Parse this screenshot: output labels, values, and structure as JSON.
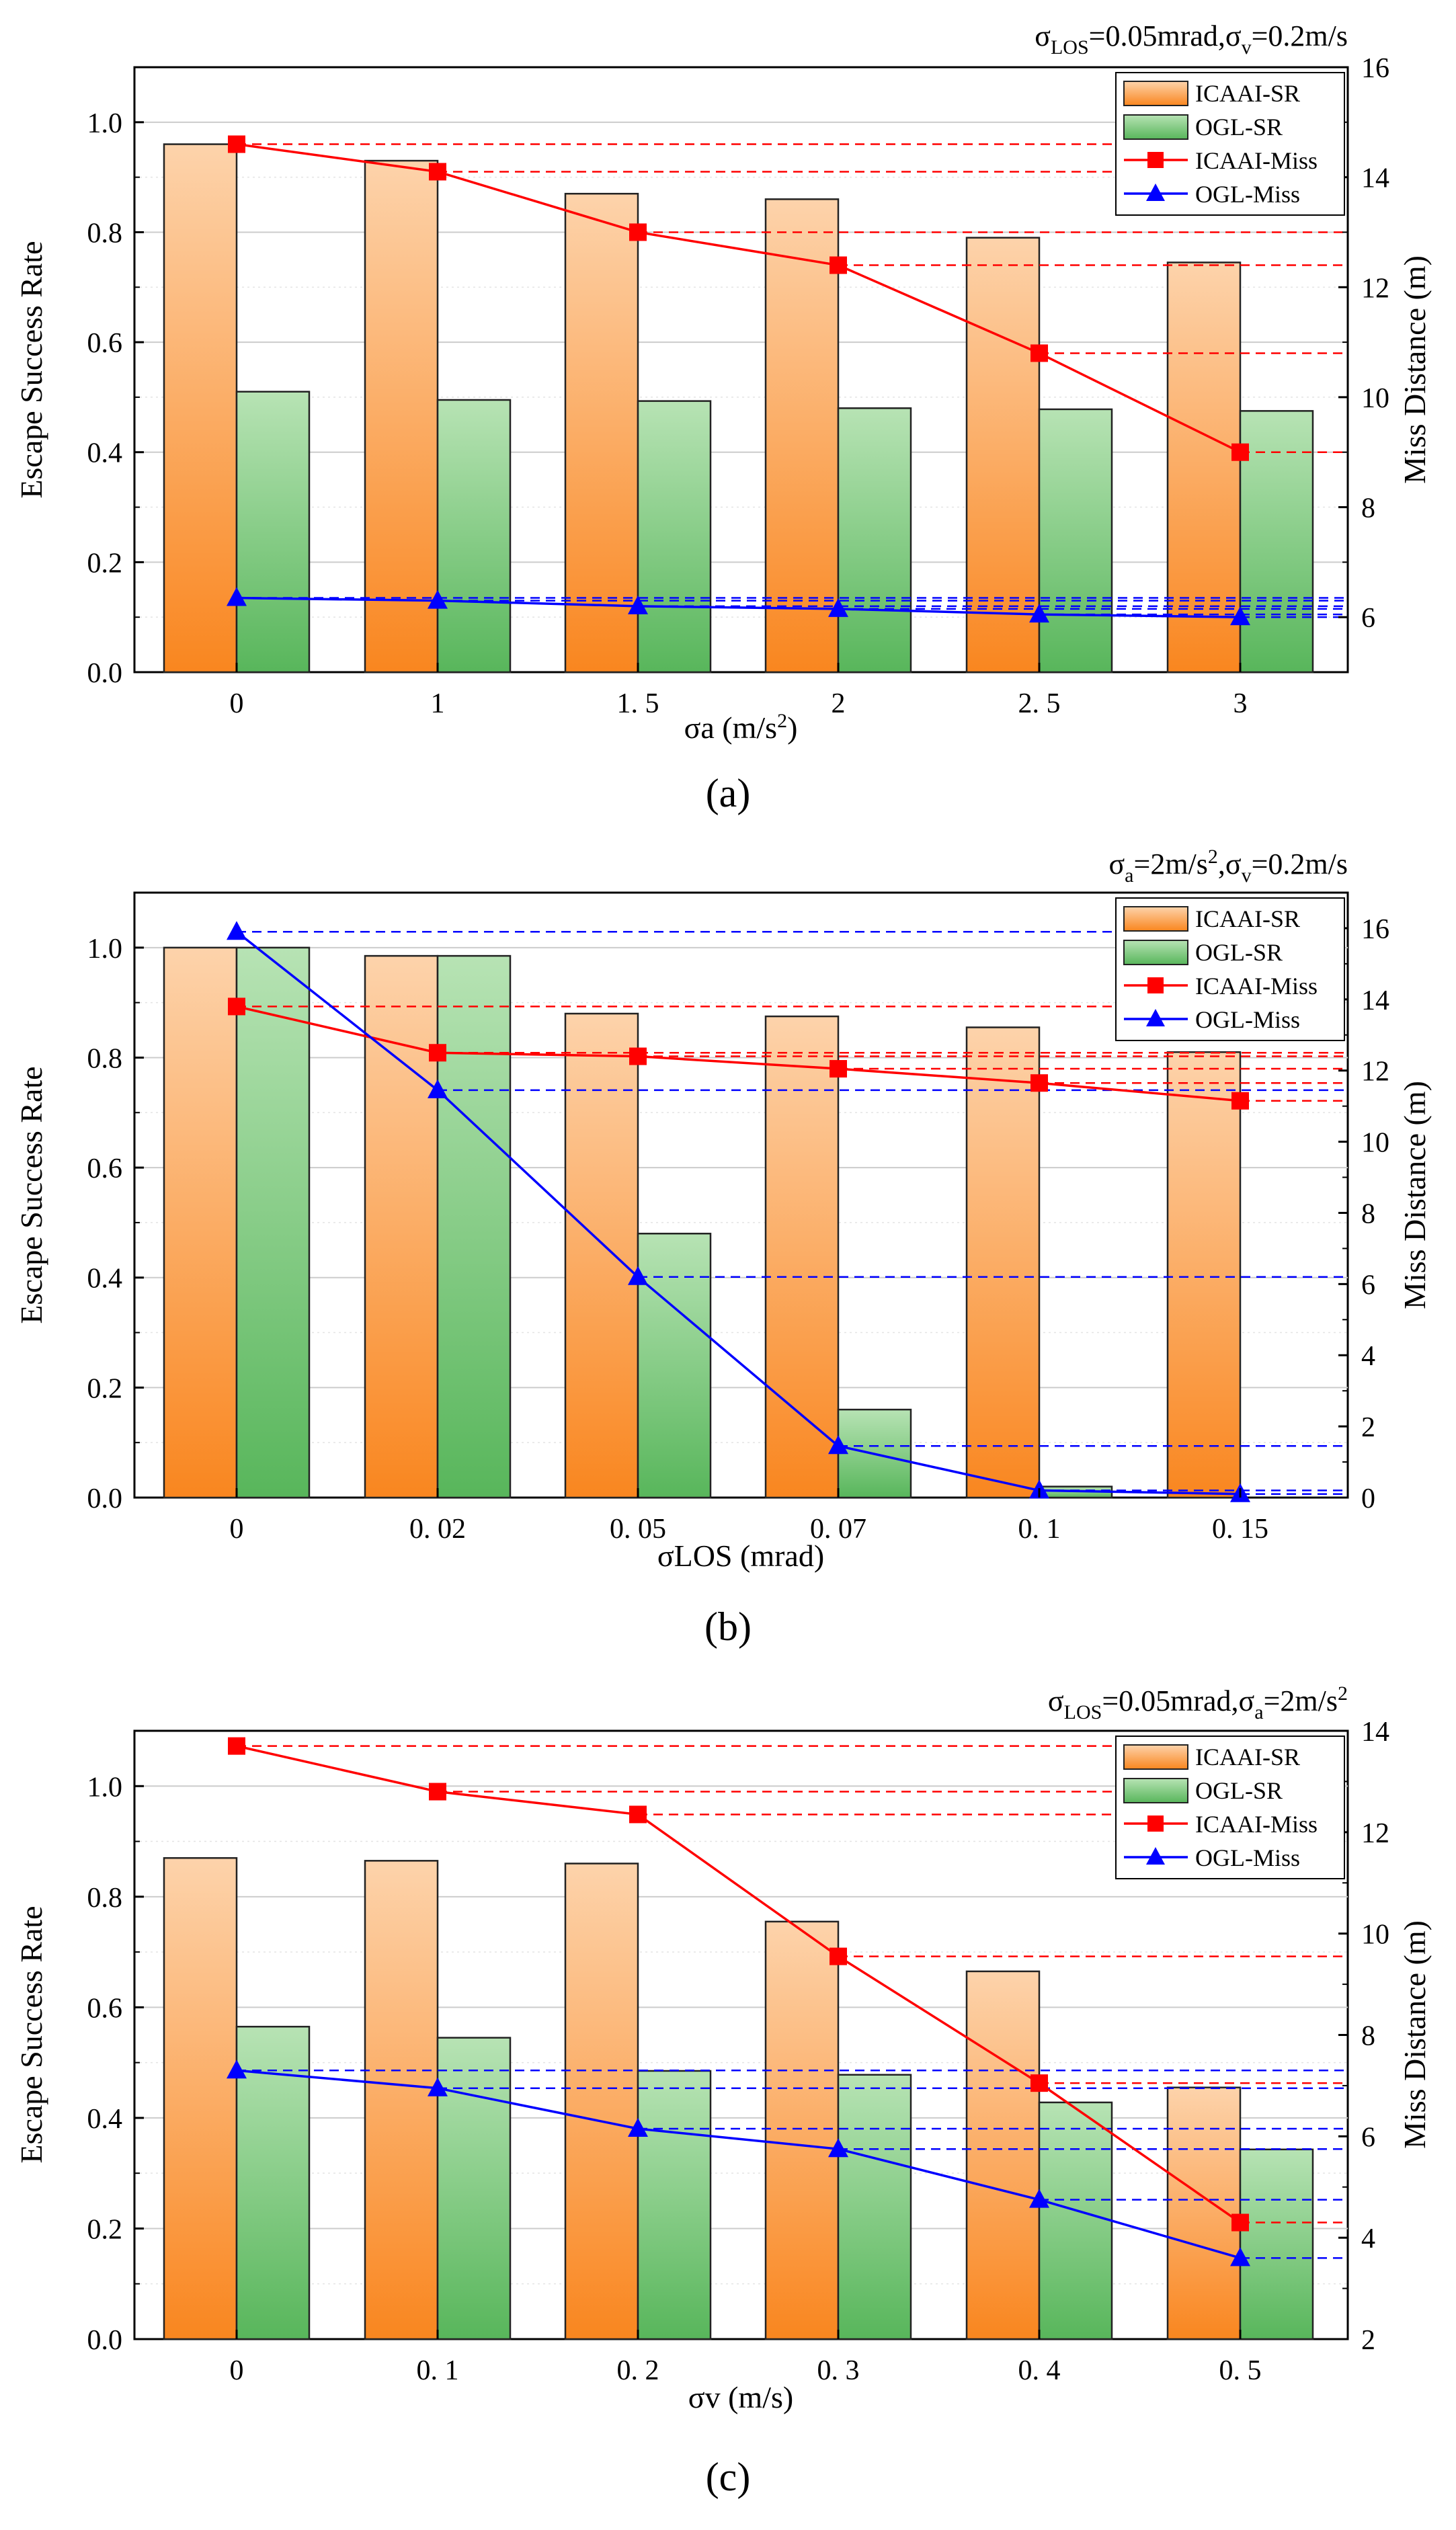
{
  "figure": {
    "colors": {
      "icaai_sr_top": "#fdd3ab",
      "icaai_sr_bottom": "#f9861f",
      "ogl_sr_top": "#b7e3b4",
      "ogl_sr_bottom": "#58b65b",
      "icaai_miss": "#ff0000",
      "ogl_miss": "#0000ff",
      "grid": "#cccccc",
      "bar_stroke": "#222222"
    },
    "legend": [
      "ICAAI-SR",
      "OGL-SR",
      "ICAAI-Miss",
      "OGL-Miss"
    ]
  },
  "chart_data": [
    {
      "type": "bar",
      "panel_label": "(a)",
      "annotation": "σLOS=0.05mrad,σv=0.2m/s",
      "annotation_parts": {
        "s1": "σ",
        "sub1": "LOS",
        "mid": "=0.05mrad,σ",
        "sub2": "v",
        "end": "=0.2m/s"
      },
      "xlabel": "σa (m/s²)",
      "xlabel_parts": {
        "base": "σa (m/s",
        "sup": "2",
        "end": ")"
      },
      "ylabel": "Escape Success Rate",
      "y2label": "Miss Distance (m)",
      "categories": [
        "0",
        "1",
        "1. 5",
        "2",
        "2. 5",
        "3"
      ],
      "ylim": [
        0,
        1.1
      ],
      "yticks": [
        "0.0",
        "0.2",
        "0.4",
        "0.6",
        "0.8",
        "1.0"
      ],
      "y2lim": [
        5,
        16
      ],
      "y2ticks": [
        "6",
        "8",
        "10",
        "12",
        "14",
        "16"
      ],
      "series": [
        {
          "name": "ICAAI-SR",
          "kind": "bar",
          "axis": "left",
          "values": [
            0.96,
            0.93,
            0.87,
            0.86,
            0.79,
            0.745
          ]
        },
        {
          "name": "OGL-SR",
          "kind": "bar",
          "axis": "left",
          "values": [
            0.51,
            0.495,
            0.493,
            0.48,
            0.478,
            0.475
          ]
        },
        {
          "name": "ICAAI-Miss",
          "kind": "line",
          "axis": "right",
          "values": [
            14.6,
            14.1,
            13.0,
            12.4,
            10.8,
            9.0
          ]
        },
        {
          "name": "OGL-Miss",
          "kind": "line",
          "axis": "right",
          "values": [
            6.35,
            6.3,
            6.2,
            6.15,
            6.05,
            6.0
          ]
        }
      ]
    },
    {
      "type": "bar",
      "panel_label": "(b)",
      "annotation": "σa=2m/s²,σv=0.2m/s",
      "annotation_parts": {
        "s1": "σ",
        "sub1": "a",
        "mid": "=2m/s",
        "sup": "2",
        "mid2": ",σ",
        "sub2": "v",
        "end": "=0.2m/s"
      },
      "xlabel": "σLOS (mrad)",
      "ylabel": "Escape Success Rate",
      "y2label": "Miss Distance (m)",
      "categories": [
        "0",
        "0. 02",
        "0. 05",
        "0. 07",
        "0. 1",
        "0. 15"
      ],
      "ylim": [
        0,
        1.1
      ],
      "yticks": [
        "0.0",
        "0.2",
        "0.4",
        "0.6",
        "0.8",
        "1.0"
      ],
      "y2lim": [
        0,
        17
      ],
      "y2ticks": [
        "0",
        "2",
        "4",
        "6",
        "8",
        "10",
        "12",
        "14",
        "16"
      ],
      "series": [
        {
          "name": "ICAAI-SR",
          "kind": "bar",
          "axis": "left",
          "values": [
            1.0,
            0.985,
            0.88,
            0.875,
            0.855,
            0.81
          ]
        },
        {
          "name": "OGL-SR",
          "kind": "bar",
          "axis": "left",
          "values": [
            1.0,
            0.985,
            0.48,
            0.16,
            0.02,
            0.0
          ]
        },
        {
          "name": "ICAAI-Miss",
          "kind": "line",
          "axis": "right",
          "values": [
            13.8,
            12.5,
            12.4,
            12.05,
            11.65,
            11.15
          ]
        },
        {
          "name": "OGL-Miss",
          "kind": "line",
          "axis": "right",
          "values": [
            15.9,
            11.45,
            6.2,
            1.45,
            0.2,
            0.1
          ]
        }
      ]
    },
    {
      "type": "bar",
      "panel_label": "(c)",
      "annotation": "σLOS=0.05mrad,σa=2m/s²",
      "annotation_parts": {
        "s1": "σ",
        "sub1": "LOS",
        "mid": "=0.05mrad,σ",
        "sub2": "a",
        "end": "=2m/s",
        "sup": "2"
      },
      "xlabel": "σv (m/s)",
      "ylabel": "Escape Success Rate",
      "y2label": "Miss Distance (m)",
      "categories": [
        "0",
        "0. 1",
        "0. 2",
        "0. 3",
        "0. 4",
        "0. 5"
      ],
      "ylim": [
        0,
        1.1
      ],
      "yticks": [
        "0.0",
        "0.2",
        "0.4",
        "0.6",
        "0.8",
        "1.0"
      ],
      "y2lim": [
        2,
        14
      ],
      "y2ticks": [
        "2",
        "4",
        "6",
        "8",
        "10",
        "12",
        "14"
      ],
      "series": [
        {
          "name": "ICAAI-SR",
          "kind": "bar",
          "axis": "left",
          "values": [
            0.87,
            0.865,
            0.86,
            0.755,
            0.665,
            0.455
          ]
        },
        {
          "name": "OGL-SR",
          "kind": "bar",
          "axis": "left",
          "values": [
            0.565,
            0.545,
            0.485,
            0.478,
            0.428,
            0.343
          ]
        },
        {
          "name": "ICAAI-Miss",
          "kind": "line",
          "axis": "right",
          "values": [
            13.7,
            12.8,
            12.35,
            9.55,
            7.05,
            4.3
          ]
        },
        {
          "name": "OGL-Miss",
          "kind": "line",
          "axis": "right",
          "values": [
            7.3,
            6.95,
            6.15,
            5.75,
            4.75,
            3.6
          ]
        }
      ]
    }
  ]
}
